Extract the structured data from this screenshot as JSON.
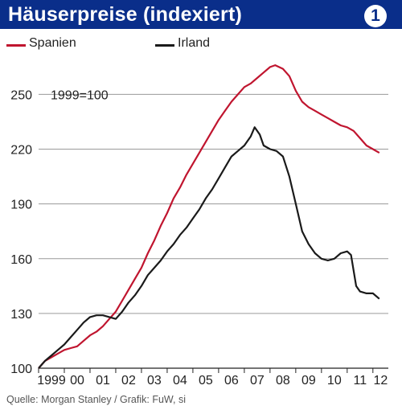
{
  "header": {
    "title": "Häuserpreise (indexiert)",
    "badge": "1"
  },
  "colors": {
    "header_bg": "#0a2e8a",
    "spanien": "#c0152f",
    "irland": "#1a1a1a"
  },
  "annotation": "1999=100",
  "source": "Quelle: Morgan Stanley / Grafik: FuW, si",
  "chart_data": {
    "type": "line",
    "title": "Häuserpreise (indexiert)",
    "xlabel": "",
    "ylabel": "",
    "ylim": [
      100,
      270
    ],
    "xlim": [
      1999,
      2012.6
    ],
    "y_ticks": [
      100,
      130,
      160,
      190,
      220,
      250
    ],
    "x_ticks": [
      {
        "label": "1999",
        "x": 1999
      },
      {
        "label": "00",
        "x": 2000
      },
      {
        "label": "01",
        "x": 2001
      },
      {
        "label": "02",
        "x": 2002
      },
      {
        "label": "03",
        "x": 2003
      },
      {
        "label": "04",
        "x": 2004
      },
      {
        "label": "05",
        "x": 2005
      },
      {
        "label": "06",
        "x": 2006
      },
      {
        "label": "07",
        "x": 2007
      },
      {
        "label": "08",
        "x": 2008
      },
      {
        "label": "09",
        "x": 2009
      },
      {
        "label": "10",
        "x": 2010
      },
      {
        "label": "11",
        "x": 2011
      },
      {
        "label": "12",
        "x": 2012
      }
    ],
    "legend_position": "top",
    "series": [
      {
        "name": "Spanien",
        "points": [
          [
            1999.0,
            100
          ],
          [
            1999.25,
            104
          ],
          [
            1999.5,
            106
          ],
          [
            1999.75,
            108
          ],
          [
            2000.0,
            110
          ],
          [
            2000.25,
            111
          ],
          [
            2000.5,
            112
          ],
          [
            2000.75,
            115
          ],
          [
            2001.0,
            118
          ],
          [
            2001.25,
            120
          ],
          [
            2001.5,
            123
          ],
          [
            2001.75,
            127
          ],
          [
            2002.0,
            131
          ],
          [
            2002.25,
            137
          ],
          [
            2002.5,
            143
          ],
          [
            2002.75,
            149
          ],
          [
            2003.0,
            155
          ],
          [
            2003.25,
            163
          ],
          [
            2003.5,
            170
          ],
          [
            2003.75,
            178
          ],
          [
            2004.0,
            185
          ],
          [
            2004.25,
            193
          ],
          [
            2004.5,
            199
          ],
          [
            2004.75,
            206
          ],
          [
            2005.0,
            212
          ],
          [
            2005.25,
            218
          ],
          [
            2005.5,
            224
          ],
          [
            2005.75,
            230
          ],
          [
            2006.0,
            236
          ],
          [
            2006.25,
            241
          ],
          [
            2006.5,
            246
          ],
          [
            2006.75,
            250
          ],
          [
            2007.0,
            254
          ],
          [
            2007.25,
            256
          ],
          [
            2007.5,
            259
          ],
          [
            2007.75,
            262
          ],
          [
            2008.0,
            265
          ],
          [
            2008.2,
            266
          ],
          [
            2008.5,
            264
          ],
          [
            2008.75,
            260
          ],
          [
            2009.0,
            252
          ],
          [
            2009.25,
            246
          ],
          [
            2009.5,
            243
          ],
          [
            2009.75,
            241
          ],
          [
            2010.0,
            239
          ],
          [
            2010.25,
            237
          ],
          [
            2010.5,
            235
          ],
          [
            2010.75,
            233
          ],
          [
            2011.0,
            232
          ],
          [
            2011.25,
            230
          ],
          [
            2011.5,
            226
          ],
          [
            2011.75,
            222
          ],
          [
            2012.0,
            220
          ],
          [
            2012.25,
            218
          ]
        ]
      },
      {
        "name": "Irland",
        "points": [
          [
            1999.0,
            100
          ],
          [
            1999.25,
            104
          ],
          [
            1999.5,
            107
          ],
          [
            1999.75,
            110
          ],
          [
            2000.0,
            113
          ],
          [
            2000.25,
            117
          ],
          [
            2000.5,
            121
          ],
          [
            2000.75,
            125
          ],
          [
            2001.0,
            128
          ],
          [
            2001.25,
            129
          ],
          [
            2001.5,
            129
          ],
          [
            2001.75,
            128
          ],
          [
            2002.0,
            127
          ],
          [
            2002.25,
            131
          ],
          [
            2002.5,
            136
          ],
          [
            2002.75,
            140
          ],
          [
            2003.0,
            145
          ],
          [
            2003.25,
            151
          ],
          [
            2003.5,
            155
          ],
          [
            2003.75,
            159
          ],
          [
            2004.0,
            164
          ],
          [
            2004.25,
            168
          ],
          [
            2004.5,
            173
          ],
          [
            2004.75,
            177
          ],
          [
            2005.0,
            182
          ],
          [
            2005.25,
            187
          ],
          [
            2005.5,
            193
          ],
          [
            2005.75,
            198
          ],
          [
            2006.0,
            204
          ],
          [
            2006.25,
            210
          ],
          [
            2006.5,
            216
          ],
          [
            2006.75,
            219
          ],
          [
            2007.0,
            222
          ],
          [
            2007.25,
            227
          ],
          [
            2007.4,
            232
          ],
          [
            2007.6,
            228
          ],
          [
            2007.75,
            222
          ],
          [
            2008.0,
            220
          ],
          [
            2008.25,
            219
          ],
          [
            2008.5,
            216
          ],
          [
            2008.75,
            205
          ],
          [
            2009.0,
            190
          ],
          [
            2009.25,
            175
          ],
          [
            2009.5,
            168
          ],
          [
            2009.75,
            163
          ],
          [
            2010.0,
            160
          ],
          [
            2010.25,
            159
          ],
          [
            2010.5,
            160
          ],
          [
            2010.75,
            163
          ],
          [
            2011.0,
            164
          ],
          [
            2011.15,
            162
          ],
          [
            2011.35,
            145
          ],
          [
            2011.5,
            142
          ],
          [
            2011.75,
            141
          ],
          [
            2012.0,
            141
          ],
          [
            2012.25,
            138
          ]
        ]
      }
    ]
  }
}
